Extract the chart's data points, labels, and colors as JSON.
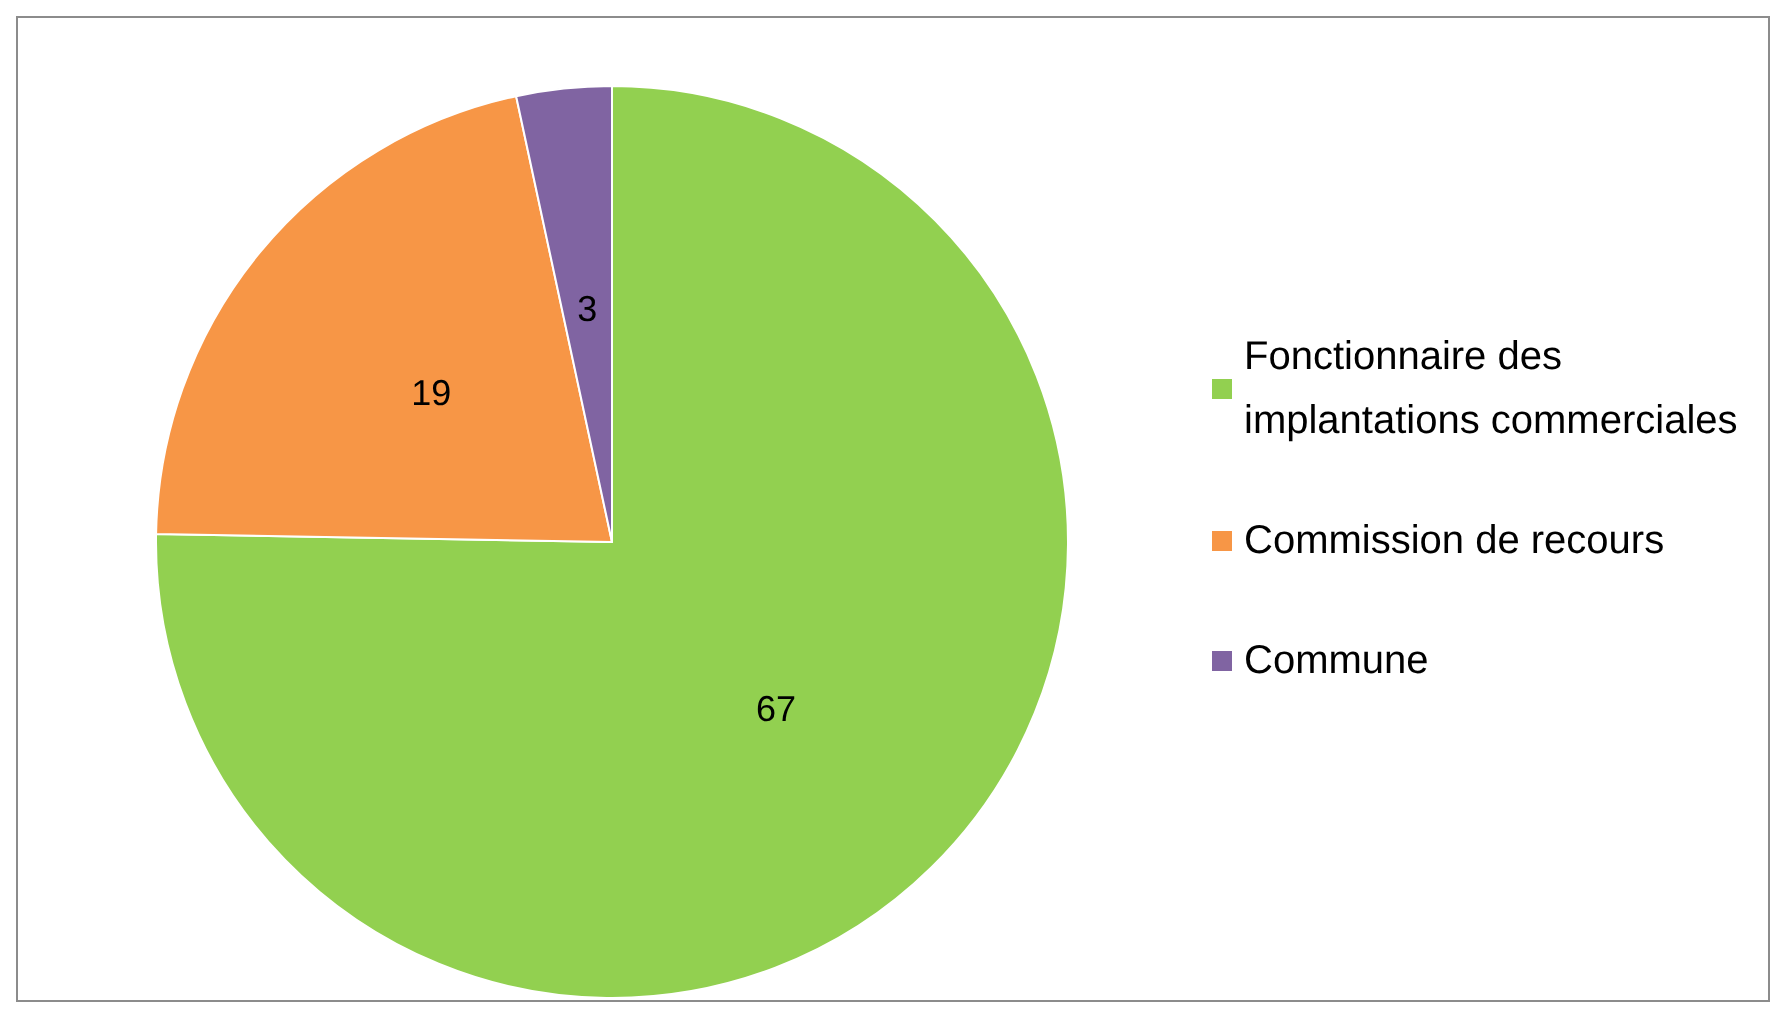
{
  "chart_data": {
    "type": "pie",
    "categories": [
      "Fonctionnaire des implantations commerciales",
      "Commission de recours",
      "Commune"
    ],
    "values": [
      67,
      19,
      3
    ],
    "colors": [
      "#92d050",
      "#f79646",
      "#8064a2"
    ],
    "data_labels": true,
    "legend": "right"
  }
}
